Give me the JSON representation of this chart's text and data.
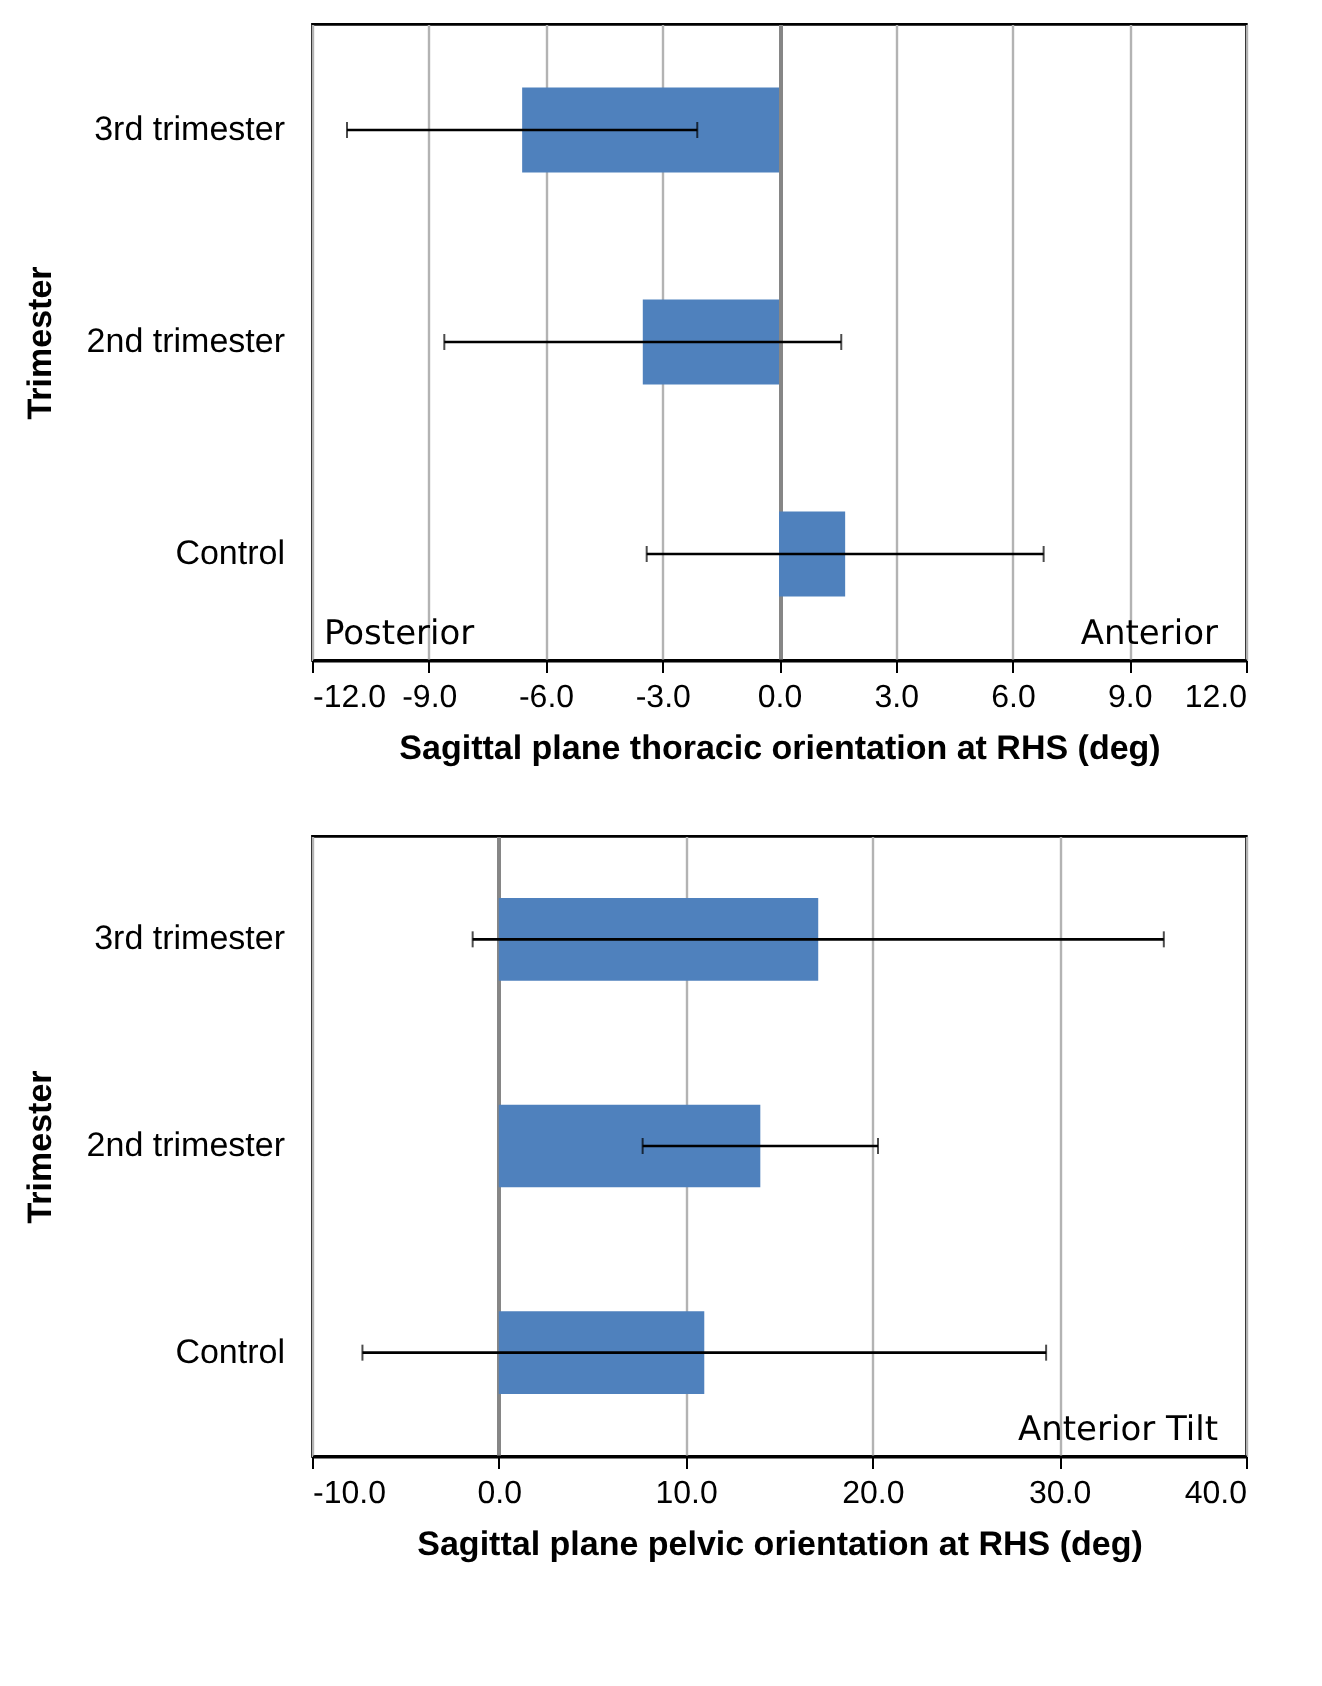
{
  "chart_data": [
    {
      "type": "bar",
      "orientation": "horizontal",
      "categories": [
        "3rd trimester",
        "2nd trimester",
        "Control"
      ],
      "values": [
        -6.6,
        -3.5,
        1.7
      ],
      "errors": [
        4.5,
        5.1,
        5.1
      ],
      "color": "#4f81bd",
      "xlabel": "Sagittal plane thoracic orientation at RHS (deg)",
      "ylabel": "Trimester",
      "xlim": [
        -12,
        12
      ],
      "xticks": [
        {
          "value": -12,
          "label": "-12.0"
        },
        {
          "value": -9,
          "label": "-9.0"
        },
        {
          "value": -6,
          "label": "-6.0"
        },
        {
          "value": -3,
          "label": "-3.0"
        },
        {
          "value": 0,
          "label": "0.0"
        },
        {
          "value": 3,
          "label": "3.0"
        },
        {
          "value": 6,
          "label": "6.0"
        },
        {
          "value": 9,
          "label": "9.0"
        },
        {
          "value": 12,
          "label": "12.0"
        }
      ],
      "grid": "x",
      "annotations": [
        "Posterior",
        "Anterior"
      ]
    },
    {
      "type": "bar",
      "orientation": "horizontal",
      "categories": [
        "3rd trimester",
        "2nd trimester",
        "Control"
      ],
      "values": [
        17.1,
        14.0,
        11.0
      ],
      "errors": [
        18.5,
        6.3,
        18.3
      ],
      "color": "#4f81bd",
      "xlabel": "Sagittal plane pelvic orientation at RHS (deg)",
      "ylabel": "Trimester",
      "xlim": [
        -10,
        40
      ],
      "xticks": [
        {
          "value": -10,
          "label": "-10.0"
        },
        {
          "value": 0,
          "label": "0.0"
        },
        {
          "value": 10,
          "label": "10.0"
        },
        {
          "value": 20,
          "label": "20.0"
        },
        {
          "value": 30,
          "label": "30.0"
        },
        {
          "value": 40,
          "label": "40.0"
        }
      ],
      "grid": "x",
      "annotations": [
        "Anterior Tilt"
      ]
    }
  ]
}
